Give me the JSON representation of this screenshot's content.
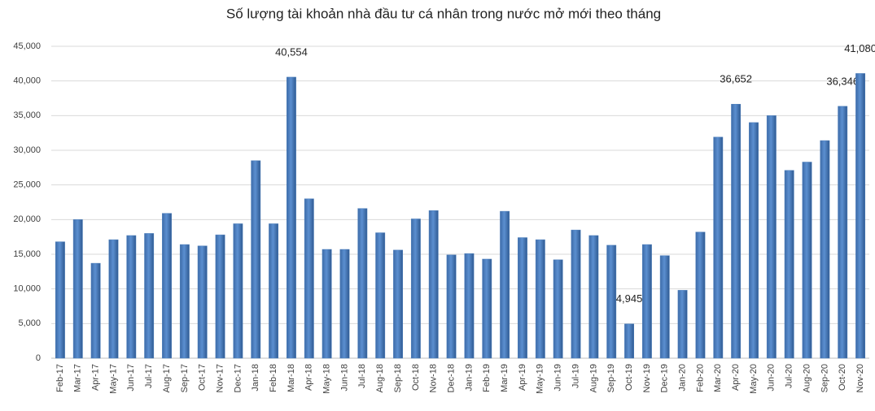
{
  "chart_data": {
    "type": "bar",
    "title": "Số lượng tài khoản nhà đầu tư cá nhân trong nước mở mới theo tháng",
    "categories": [
      "Feb-17",
      "Mar-17",
      "Apr-17",
      "May-17",
      "Jun-17",
      "Jul-17",
      "Aug-17",
      "Sep-17",
      "Oct-17",
      "Nov-17",
      "Dec-17",
      "Jan-18",
      "Feb-18",
      "Mar-18",
      "Apr-18",
      "May-18",
      "Jun-18",
      "Jul-18",
      "Aug-18",
      "Sep-18",
      "Oct-18",
      "Nov-18",
      "Dec-18",
      "Jan-19",
      "Feb-19",
      "Mar-19",
      "Apr-19",
      "May-19",
      "Jun-19",
      "Jul-19",
      "Aug-19",
      "Sep-19",
      "Oct-19",
      "Nov-19",
      "Dec-19",
      "Jan-20",
      "Feb-20",
      "Mar-20",
      "Apr-20",
      "May-20",
      "Jun-20",
      "Jul-20",
      "Aug-20",
      "Sep-20",
      "Oct-20",
      "Nov-20"
    ],
    "values": [
      16800,
      20000,
      13700,
      17100,
      17700,
      18000,
      20900,
      16400,
      16200,
      17800,
      19400,
      28500,
      19400,
      40554,
      23000,
      15700,
      15700,
      21600,
      18100,
      15600,
      20100,
      21300,
      14900,
      15100,
      14300,
      21200,
      17400,
      17100,
      14200,
      18500,
      17700,
      16300,
      4945,
      16400,
      14800,
      9800,
      18200,
      31900,
      36652,
      34000,
      35000,
      27100,
      28300,
      31400,
      36346,
      41080
    ],
    "value_labels": [
      null,
      null,
      null,
      null,
      null,
      null,
      null,
      null,
      null,
      null,
      null,
      null,
      null,
      "40,554",
      null,
      null,
      null,
      null,
      null,
      null,
      null,
      null,
      null,
      null,
      null,
      null,
      null,
      null,
      null,
      null,
      null,
      null,
      "4,945",
      null,
      null,
      null,
      null,
      null,
      "36,652",
      null,
      null,
      null,
      null,
      null,
      "36,346",
      "41,080"
    ],
    "color": "#4f81bd",
    "ylim": [
      0,
      45000
    ],
    "yticks": [
      0,
      {
        "value": 5000,
        "label": "5,000"
      },
      {
        "value": 10000,
        "label": "10,000"
      },
      {
        "value": 15000,
        "label": "15,000"
      },
      {
        "value": 20000,
        "label": "20,000"
      },
      {
        "value": 25000,
        "label": "25,000"
      },
      {
        "value": 30000,
        "label": "30,000"
      },
      {
        "value": 35000,
        "label": "35,000"
      },
      {
        "value": 40000,
        "label": "40,000"
      },
      {
        "value": 45000,
        "label": "45,000"
      }
    ],
    "grid": true
  }
}
